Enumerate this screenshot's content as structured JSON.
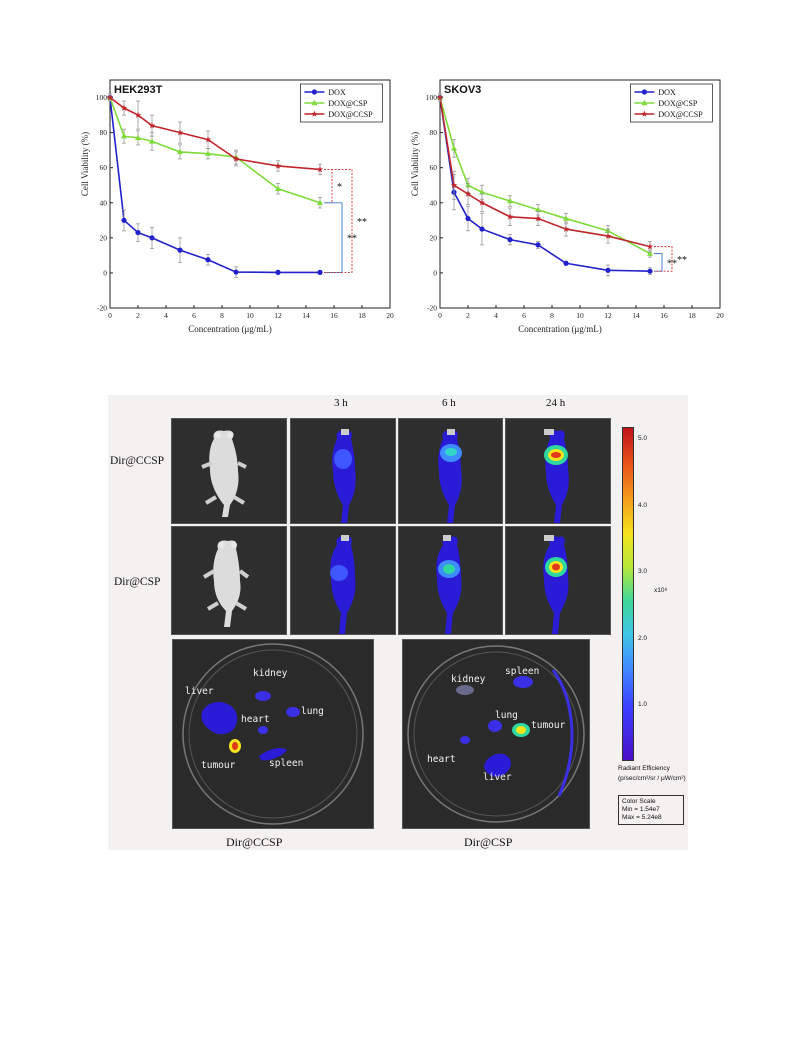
{
  "chart_data": [
    {
      "type": "line",
      "title": "HEK293T",
      "xlabel": "Concentration (μg/mL)",
      "ylabel": "Cell Viability  (%)",
      "xlim": [
        0,
        20
      ],
      "ylim": [
        -20,
        110
      ],
      "x_ticks": [
        "0",
        "2",
        "4",
        "6",
        "8",
        "10",
        "12",
        "14",
        "16",
        "18",
        "20"
      ],
      "y_ticks": [
        "-20",
        "0",
        "20",
        "40",
        "60",
        "80",
        "100"
      ],
      "legend_position": "top-right",
      "series": [
        {
          "name": "DOX",
          "color": "#2222cc",
          "marker": "circle",
          "x": [
            0,
            1,
            2,
            3,
            5,
            7,
            9,
            12,
            15
          ],
          "y": [
            100,
            30,
            23,
            20,
            13,
            7.5,
            0.5,
            0.3,
            0.3
          ],
          "err": [
            2,
            6,
            5,
            6,
            7,
            3,
            3,
            1,
            1
          ]
        },
        {
          "name": "DOX@CSP",
          "color": "#7fdb3a",
          "marker": "triangle",
          "x": [
            0,
            1,
            2,
            3,
            5,
            7,
            9,
            12,
            15
          ],
          "y": [
            100,
            78,
            77,
            75,
            69,
            68,
            66,
            48,
            40
          ],
          "err": [
            2,
            4,
            4,
            5,
            4,
            3,
            4,
            3,
            3
          ]
        },
        {
          "name": "DOX@CCSP",
          "color": "#c0272d",
          "marker": "star",
          "x": [
            0,
            1,
            2,
            3,
            5,
            7,
            9,
            12,
            15
          ],
          "y": [
            100,
            94,
            90,
            84,
            80,
            76,
            65,
            61,
            59
          ],
          "err": [
            2,
            4,
            8,
            6,
            6,
            5,
            4,
            3,
            3
          ]
        }
      ],
      "significance": [
        {
          "label": "*",
          "between": [
            "DOX@CCSP",
            "DOX@CSP"
          ]
        },
        {
          "label": "**",
          "between": [
            "DOX@CSP",
            "DOX"
          ]
        },
        {
          "label": "**",
          "between": [
            "DOX@CCSP",
            "DOX"
          ]
        }
      ]
    },
    {
      "type": "line",
      "title": "SKOV3",
      "xlabel": "Concentration (μg/mL)",
      "ylabel": "Cell Viability  (%)",
      "xlim": [
        0,
        20
      ],
      "ylim": [
        -20,
        110
      ],
      "x_ticks": [
        "0",
        "2",
        "4",
        "6",
        "8",
        "10",
        "12",
        "14",
        "16",
        "18",
        "20"
      ],
      "y_ticks": [
        "-20",
        "0",
        "20",
        "40",
        "60",
        "80",
        "100"
      ],
      "legend_position": "top-right",
      "series": [
        {
          "name": "DOX",
          "color": "#2222cc",
          "marker": "circle",
          "x": [
            0,
            1,
            2,
            3,
            5,
            7,
            9,
            12,
            15
          ],
          "y": [
            100,
            46,
            31,
            25,
            19,
            16,
            5.5,
            1.5,
            1
          ],
          "err": [
            2,
            10,
            7,
            9,
            3,
            2,
            1,
            3,
            2
          ]
        },
        {
          "name": "DOX@CSP",
          "color": "#7fdb3a",
          "marker": "triangle",
          "x": [
            0,
            1,
            2,
            3,
            5,
            7,
            9,
            12,
            15
          ],
          "y": [
            100,
            71,
            50,
            46,
            41,
            36,
            31,
            24,
            11
          ],
          "err": [
            2,
            5,
            4,
            4,
            3,
            3,
            3,
            3,
            2
          ]
        },
        {
          "name": "DOX@CCSP",
          "color": "#c0272d",
          "marker": "star",
          "x": [
            0,
            1,
            2,
            3,
            5,
            7,
            9,
            12,
            15
          ],
          "y": [
            100,
            50,
            45,
            40,
            32,
            31,
            25,
            21,
            15
          ],
          "err": [
            2,
            8,
            6,
            5,
            5,
            4,
            4,
            4,
            3
          ]
        }
      ],
      "significance": [
        {
          "label": "**",
          "between": [
            "DOX@CSP",
            "DOX"
          ]
        },
        {
          "label": "**",
          "between": [
            "DOX@CCSP",
            "DOX"
          ]
        }
      ]
    }
  ],
  "imaging": {
    "time_labels": [
      "3 h",
      "6 h",
      "24 h"
    ],
    "row_labels": [
      "Dir@CCSP",
      "Dir@CSP"
    ],
    "bottom_labels": [
      "Dir@CCSP",
      "Dir@CSP"
    ],
    "organs_ccsp": [
      "liver",
      "kidney",
      "heart",
      "lung",
      "tumour",
      "spleen"
    ],
    "organs_csp": [
      "kidney",
      "spleen",
      "lung",
      "tumour",
      "heart",
      "liver"
    ],
    "color_scale": {
      "ticks": [
        "5.0",
        "4.0",
        "3.0",
        "2.0",
        "1.0"
      ],
      "unit": "x10⁸",
      "title": "Radiant Efficiency",
      "units_line": "(p/sec/cm²/sr / μW/cm²)",
      "box_title": "Color Scale",
      "min": "Min = 1.54e7",
      "max": "Max = 5.24e8"
    }
  }
}
